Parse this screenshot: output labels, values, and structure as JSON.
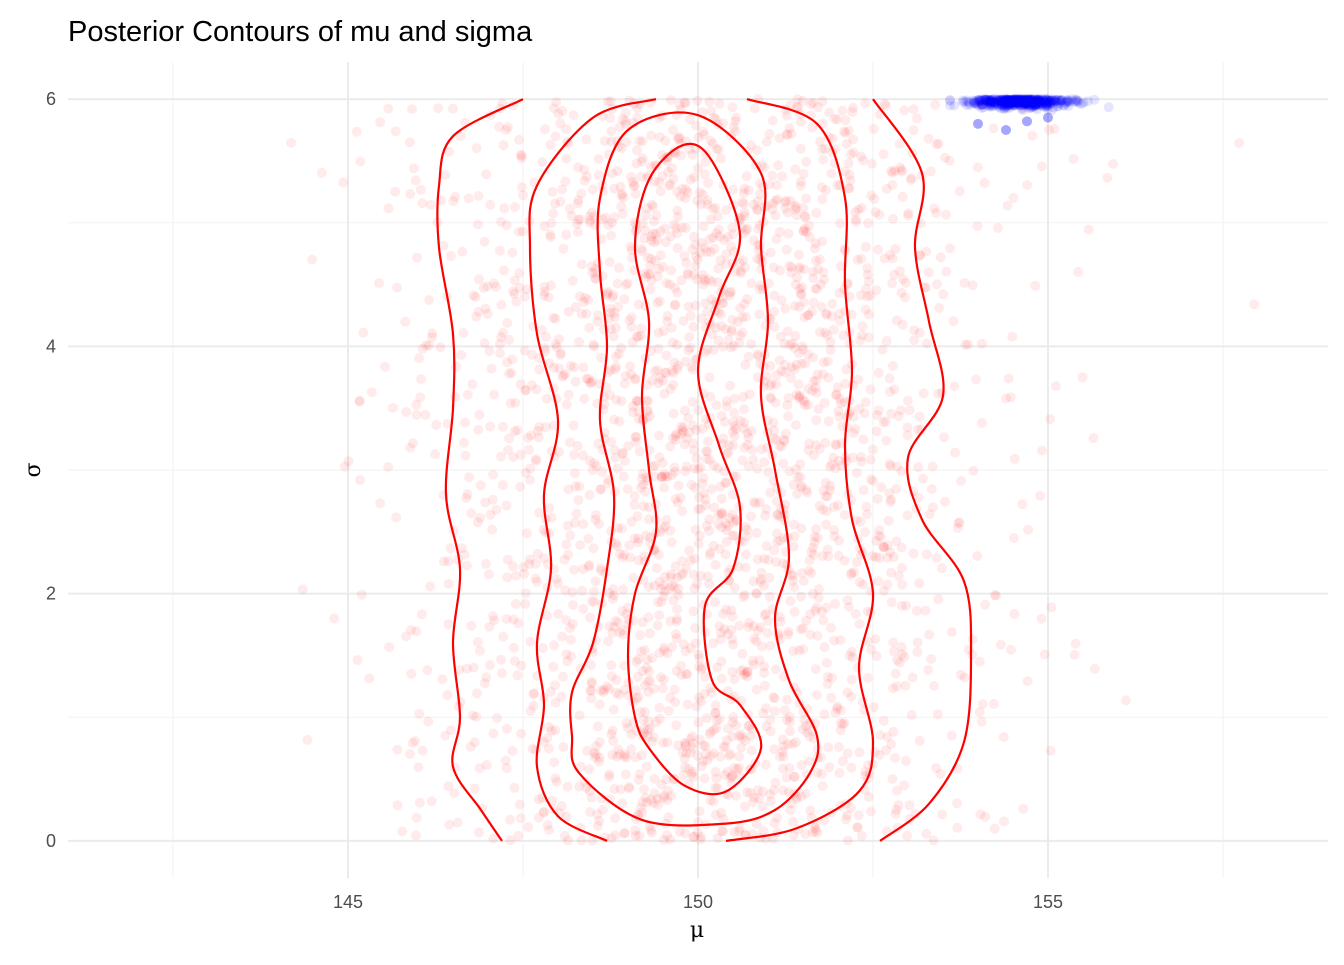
{
  "chart_data": {
    "type": "scatter",
    "title": "Posterior Contours of mu and sigma",
    "xlabel": "μ",
    "ylabel": "σ",
    "xlim": [
      141.0,
      159.0
    ],
    "ylim": [
      -0.3,
      6.3
    ],
    "x_ticks": [
      145,
      150,
      155
    ],
    "x_minor_ticks": [
      142.5,
      147.5,
      152.5,
      157.5
    ],
    "y_ticks": [
      0,
      2,
      4,
      6
    ],
    "y_minor_ticks": [
      1,
      3,
      5
    ],
    "grid": true,
    "legend": "none",
    "series": [
      {
        "kind": "points",
        "color": "#ff0000",
        "opacity": 0.08,
        "n": 2600,
        "mu_center": 150.1,
        "mu_sd": 2.0,
        "sigma_range": [
          0,
          6
        ]
      },
      {
        "kind": "points",
        "color": "#0000ff",
        "opacity": 0.1,
        "n": 600,
        "mu_center": 154.6,
        "mu_range": [
          153.6,
          155.9
        ],
        "sigma_range": [
          5.8,
          6.0
        ]
      },
      {
        "kind": "contours",
        "color": "#ff0000",
        "levels": [
          [
            [
              147.2,
              0.0
            ],
            [
              146.9,
              0.25
            ],
            [
              146.5,
              0.6
            ],
            [
              146.6,
              1.0
            ],
            [
              146.5,
              1.6
            ],
            [
              146.6,
              2.2
            ],
            [
              146.4,
              2.8
            ],
            [
              146.5,
              3.5
            ],
            [
              146.5,
              4.1
            ],
            [
              146.3,
              4.8
            ],
            [
              146.3,
              5.3
            ],
            [
              146.5,
              5.7
            ],
            [
              147.5,
              6.0
            ]
          ],
          [
            [
              152.6,
              0.0
            ],
            [
              153.3,
              0.3
            ],
            [
              153.8,
              0.8
            ],
            [
              153.9,
              1.5
            ],
            [
              153.8,
              2.1
            ],
            [
              153.2,
              2.6
            ],
            [
              153.0,
              3.1
            ],
            [
              153.5,
              3.6
            ],
            [
              153.3,
              4.2
            ],
            [
              153.1,
              4.8
            ],
            [
              153.2,
              5.4
            ],
            [
              152.5,
              6.0
            ]
          ],
          [
            [
              148.7,
              0.0
            ],
            [
              148.0,
              0.2
            ],
            [
              147.7,
              0.6
            ],
            [
              147.8,
              1.1
            ],
            [
              147.7,
              1.6
            ],
            [
              147.9,
              2.2
            ],
            [
              147.8,
              2.8
            ],
            [
              148.0,
              3.4
            ],
            [
              147.7,
              4.1
            ],
            [
              147.6,
              4.8
            ],
            [
              147.7,
              5.3
            ],
            [
              148.5,
              5.85
            ],
            [
              149.4,
              6.0
            ]
          ],
          [
            [
              150.4,
              0.0
            ],
            [
              151.4,
              0.1
            ],
            [
              152.3,
              0.4
            ],
            [
              152.5,
              0.8
            ],
            [
              152.3,
              1.4
            ],
            [
              152.5,
              2.0
            ],
            [
              152.2,
              2.6
            ],
            [
              152.1,
              3.2
            ],
            [
              152.2,
              3.8
            ],
            [
              152.1,
              4.5
            ],
            [
              152.1,
              5.2
            ],
            [
              151.7,
              5.8
            ],
            [
              150.7,
              6.0
            ]
          ]
        ],
        "closed_levels": [
          [
            [
              148.3,
              0.55
            ],
            [
              149.2,
              0.17
            ],
            [
              150.4,
              0.14
            ],
            [
              151.1,
              0.25
            ],
            [
              151.6,
              0.55
            ],
            [
              151.7,
              0.85
            ],
            [
              151.3,
              1.3
            ],
            [
              151.1,
              1.8
            ],
            [
              151.3,
              2.3
            ],
            [
              151.1,
              3.0
            ],
            [
              150.9,
              3.6
            ],
            [
              151.0,
              4.2
            ],
            [
              150.9,
              4.8
            ],
            [
              150.9,
              5.4
            ],
            [
              150.0,
              5.87
            ],
            [
              149.0,
              5.75
            ],
            [
              148.6,
              5.2
            ],
            [
              148.6,
              4.6
            ],
            [
              148.7,
              4.0
            ],
            [
              148.6,
              3.4
            ],
            [
              148.8,
              2.8
            ],
            [
              148.7,
              2.2
            ],
            [
              148.5,
              1.6
            ],
            [
              148.2,
              1.2
            ],
            [
              148.2,
              0.85
            ]
          ],
          [
            [
              149.3,
              0.75
            ],
            [
              149.8,
              0.45
            ],
            [
              150.4,
              0.4
            ],
            [
              150.9,
              0.75
            ],
            [
              150.6,
              1.1
            ],
            [
              150.2,
              1.3
            ],
            [
              150.1,
              1.9
            ],
            [
              150.5,
              2.2
            ],
            [
              150.6,
              2.7
            ],
            [
              150.3,
              3.2
            ],
            [
              150.0,
              3.8
            ],
            [
              150.3,
              4.4
            ],
            [
              150.6,
              4.9
            ],
            [
              150.2,
              5.5
            ],
            [
              149.8,
              5.63
            ],
            [
              149.3,
              5.35
            ],
            [
              149.1,
              4.8
            ],
            [
              149.3,
              4.2
            ],
            [
              149.2,
              3.6
            ],
            [
              149.3,
              3.0
            ],
            [
              149.4,
              2.5
            ],
            [
              149.1,
              2.0
            ],
            [
              149.0,
              1.5
            ],
            [
              149.1,
              1.0
            ]
          ]
        ]
      }
    ]
  }
}
